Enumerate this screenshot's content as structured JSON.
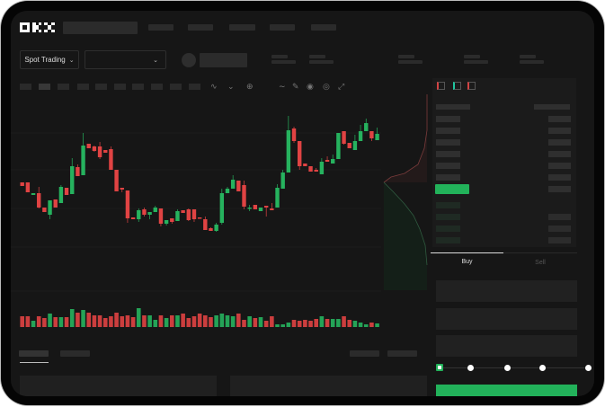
{
  "header": {
    "logo": "OKX"
  },
  "toolbar": {
    "market_selector": "Spot Trading",
    "pair_selector": ""
  },
  "order_book": {
    "icons": [
      "orderbook-both-icon",
      "orderbook-bids-icon",
      "orderbook-asks-icon"
    ]
  },
  "trade_panel": {
    "tabs": [
      {
        "label": "Buy",
        "active": true
      },
      {
        "label": "Sell",
        "active": false
      }
    ],
    "slider_percent": 0,
    "slider_marks": [
      0,
      25,
      50,
      75,
      100
    ]
  },
  "colors": {
    "up": "#26b25e",
    "down": "#e04343",
    "background": "#161616",
    "panel": "#1b1b1b"
  },
  "chart_data": {
    "type": "candlestick",
    "ohlc": [
      [
        167,
        167,
        163,
        163
      ],
      [
        167,
        167,
        156,
        156
      ],
      [
        153,
        155,
        153,
        155
      ],
      [
        155,
        162,
        138,
        139
      ],
      [
        139,
        139,
        134,
        134
      ],
      [
        131,
        147,
        126,
        147
      ],
      [
        148,
        148,
        139,
        139
      ],
      [
        144,
        164,
        144,
        162
      ],
      [
        161,
        161,
        153,
        153
      ],
      [
        154,
        194,
        154,
        185
      ],
      [
        184,
        187,
        174,
        174
      ],
      [
        175,
        222,
        175,
        208
      ],
      [
        210,
        210,
        205,
        205
      ],
      [
        207,
        208,
        201,
        202
      ],
      [
        207,
        212,
        193,
        195
      ],
      [
        203,
        203,
        200,
        200
      ],
      [
        204,
        207,
        181,
        181
      ],
      [
        181,
        181,
        157,
        157
      ],
      [
        161,
        161,
        156,
        159
      ],
      [
        158,
        158,
        122,
        127
      ],
      [
        128,
        128,
        126,
        126
      ],
      [
        126,
        138,
        123,
        136
      ],
      [
        137,
        139,
        129,
        131
      ],
      [
        131,
        134,
        126,
        134
      ],
      [
        134,
        141,
        134,
        139
      ],
      [
        138,
        138,
        118,
        121
      ],
      [
        121,
        125,
        119,
        125
      ],
      [
        127,
        127,
        121,
        123
      ],
      [
        124,
        137,
        124,
        135
      ],
      [
        136,
        136,
        133,
        133
      ],
      [
        137,
        138,
        124,
        125
      ],
      [
        137,
        137,
        123,
        126
      ],
      [
        128,
        128,
        127,
        127
      ],
      [
        126,
        129,
        114,
        114
      ],
      [
        116,
        117,
        113,
        113
      ],
      [
        113,
        122,
        112,
        120
      ],
      [
        122,
        160,
        120,
        155
      ],
      [
        155,
        162,
        155,
        160
      ],
      [
        160,
        175,
        160,
        170
      ],
      [
        169,
        169,
        157,
        157
      ],
      [
        164,
        169,
        137,
        140
      ],
      [
        138,
        142,
        135,
        139
      ],
      [
        142,
        142,
        137,
        137
      ],
      [
        135,
        139,
        135,
        139
      ],
      [
        141,
        141,
        129,
        139
      ],
      [
        138,
        144,
        136,
        136
      ],
      [
        139,
        165,
        139,
        161
      ],
      [
        160,
        181,
        160,
        178
      ],
      [
        178,
        241,
        178,
        225
      ],
      [
        227,
        229,
        211,
        213
      ],
      [
        213,
        213,
        181,
        185
      ],
      [
        188,
        188,
        185,
        185
      ],
      [
        185,
        185,
        179,
        179
      ],
      [
        181,
        183,
        179,
        179
      ],
      [
        176,
        194,
        176,
        190
      ],
      [
        192,
        196,
        190,
        190
      ],
      [
        188,
        198,
        188,
        193
      ],
      [
        193,
        222,
        193,
        222
      ],
      [
        224,
        224,
        209,
        210
      ],
      [
        211,
        211,
        205,
        205
      ],
      [
        203,
        220,
        203,
        213
      ],
      [
        213,
        231,
        213,
        224
      ],
      [
        224,
        238,
        224,
        233
      ],
      [
        224,
        224,
        213,
        216
      ],
      [
        214,
        228,
        214,
        221
      ]
    ],
    "volume": [
      12,
      12,
      7,
      12,
      10,
      15,
      11,
      11,
      11,
      20,
      16,
      19,
      16,
      13,
      13,
      10,
      12,
      16,
      12,
      13,
      11,
      21,
      13,
      13,
      8,
      13,
      10,
      13,
      13,
      15,
      10,
      12,
      15,
      13,
      11,
      13,
      15,
      13,
      12,
      15,
      8,
      12,
      10,
      11,
      7,
      12,
      3,
      3,
      5,
      8,
      7,
      8,
      7,
      9,
      12,
      9,
      9,
      9,
      12,
      8,
      7,
      5,
      3,
      5,
      4
    ]
  }
}
